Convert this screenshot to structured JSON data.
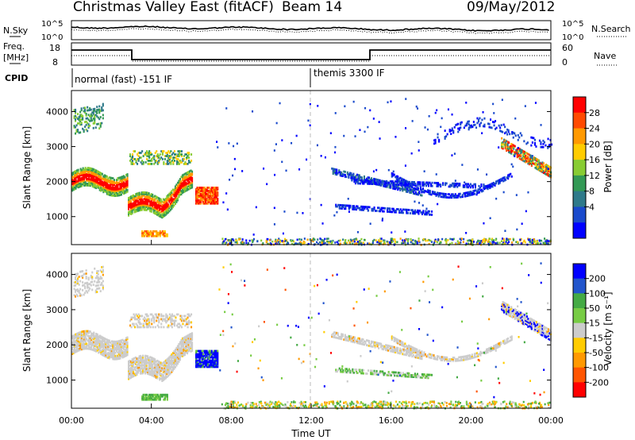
{
  "header": {
    "title": "Christmas Valley East (fitACF)",
    "beam": "Beam 14",
    "date": "09/May/2012"
  },
  "summary": {
    "nsky_label": "N.Sky",
    "nsearch_label": "N.Search",
    "nsky_ticks": [
      "10^5",
      "10^0"
    ],
    "freq_label_1": "Freq.",
    "freq_label_2": "[MHz]",
    "freq_ticks": [
      "18",
      "8"
    ],
    "nave_label": "Nave",
    "nave_ticks": [
      "60",
      "0"
    ],
    "cpid_label": "CPID",
    "cpid_segments": [
      {
        "label": "normal (fast) -151 IF",
        "start_h": 0
      },
      {
        "label": "themis 3300 IF",
        "start_h": 12
      }
    ]
  },
  "chart_data": [
    {
      "type": "heatmap",
      "title": "Power",
      "xlabel": "Time UT",
      "ylabel": "Slant Range [km]",
      "xlim": [
        0,
        24
      ],
      "ylim": [
        200,
        4600
      ],
      "x_ticks": [
        "00:00",
        "04:00",
        "08:00",
        "12:00",
        "16:00",
        "20:00",
        "00:00"
      ],
      "y_ticks": [
        1000,
        2000,
        3000,
        4000
      ],
      "colorbar": {
        "label": "Power [dB]",
        "ticks": [
          "28",
          "24",
          "20",
          "16",
          "12",
          "8",
          "4"
        ],
        "colors": [
          "#ff0000",
          "#ff4a00",
          "#ff9900",
          "#ffcc00",
          "#88cc33",
          "#339955",
          "#2f7a8a",
          "#1a4acc",
          "#0000ff"
        ]
      },
      "features": [
        {
          "band": "E/F echo",
          "t_start_h": 0.0,
          "t_end_h": 6.0,
          "range_km": [
            900,
            2600
          ],
          "power_db": [
            16,
            28
          ]
        },
        {
          "band": "patch",
          "t_start_h": 6.2,
          "t_end_h": 7.3,
          "range_km": [
            1350,
            1850
          ],
          "power_db": [
            20,
            28
          ]
        },
        {
          "band": "arcs",
          "t_start_h": 13.0,
          "t_end_h": 24.0,
          "range_km": [
            900,
            3600
          ],
          "power_db": [
            4,
            12
          ]
        }
      ]
    },
    {
      "type": "heatmap",
      "title": "Velocity",
      "xlabel": "Time UT",
      "ylabel": "Slant Range [km]",
      "xlim": [
        0,
        24
      ],
      "ylim": [
        200,
        4600
      ],
      "x_ticks": [
        "00:00",
        "04:00",
        "08:00",
        "12:00",
        "16:00",
        "20:00",
        "00:00"
      ],
      "y_ticks": [
        1000,
        2000,
        3000,
        4000
      ],
      "colorbar": {
        "label": "Velocity [m s^-1]",
        "ticks": [
          "200",
          "100",
          "50",
          "15",
          "-15",
          "-50",
          "-100",
          "-200"
        ],
        "colors": [
          "#0000ff",
          "#2255cc",
          "#44aa44",
          "#77cc44",
          "#cccccc",
          "#ffcc00",
          "#ff9900",
          "#ff5500",
          "#ff0000"
        ]
      },
      "features": [
        {
          "band": "ground scatter",
          "t_start_h": 0.0,
          "t_end_h": 6.0,
          "range_km": [
            900,
            2600
          ],
          "velocity_ms": [
            -15,
            15
          ]
        },
        {
          "band": "patch",
          "t_start_h": 6.2,
          "t_end_h": 7.3,
          "range_km": [
            1350,
            1850
          ],
          "velocity_ms": [
            100,
            200
          ]
        },
        {
          "band": "arcs",
          "t_start_h": 13.0,
          "t_end_h": 24.0,
          "range_km": [
            900,
            3600
          ],
          "velocity_ms": [
            -15,
            15
          ]
        }
      ]
    }
  ]
}
